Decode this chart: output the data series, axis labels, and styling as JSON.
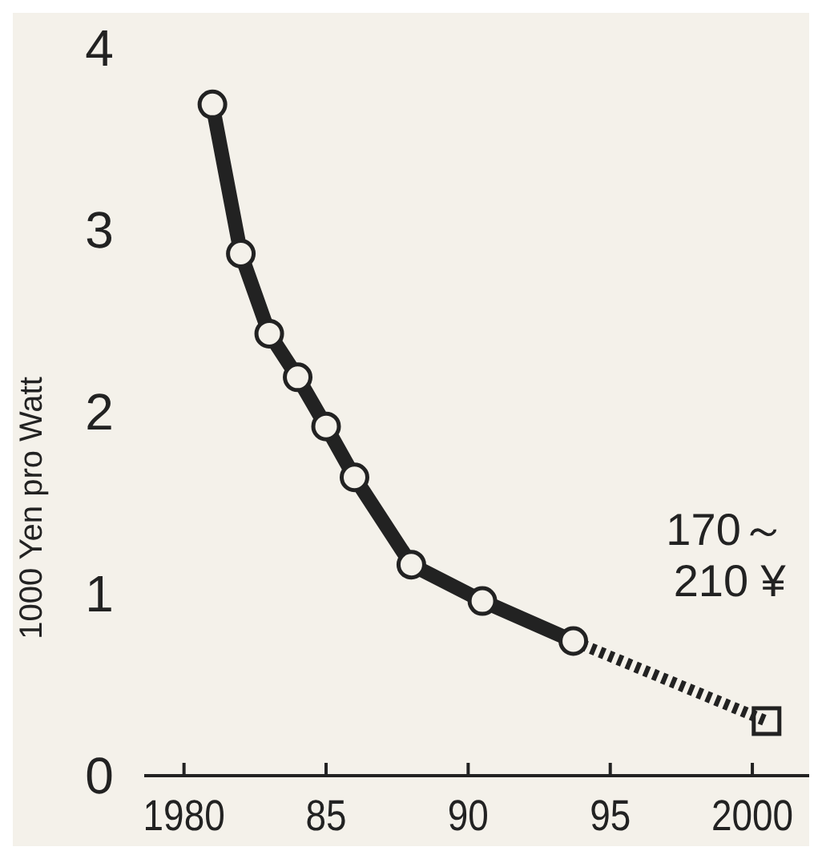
{
  "chart_data": {
    "type": "line",
    "ylabel": "1000 Yen pro Watt",
    "x": [
      1981,
      1982,
      1983,
      1984,
      1985,
      1986,
      1988,
      1990.5,
      1993.7,
      2000.5
    ],
    "series": [
      {
        "color": "#222222",
        "marker": "circle",
        "line_style": "solid",
        "values": [
          3.69,
          2.87,
          2.43,
          2.19,
          1.92,
          1.64,
          1.16,
          0.96,
          0.74,
          null
        ]
      },
      {
        "color": "#222222",
        "marker": "none",
        "line_style": "dotted",
        "values": [
          null,
          null,
          null,
          null,
          null,
          null,
          null,
          null,
          0.74,
          0.3
        ]
      },
      {
        "type": "scatter",
        "color": "#222222",
        "marker": "square",
        "values": [
          null,
          null,
          null,
          null,
          null,
          null,
          null,
          null,
          null,
          0.3
        ]
      }
    ],
    "annotations": [
      {
        "text": "170～\n210 ¥",
        "x": 2000.5,
        "y": 0.3
      }
    ],
    "xlim": [
      1978.6,
      2002
    ],
    "xticks": [
      {
        "value": 1980,
        "label": "1980"
      },
      {
        "value": 1985,
        "label": "85"
      },
      {
        "value": 1990,
        "label": "90"
      },
      {
        "value": 1995,
        "label": "95"
      },
      {
        "value": 2000,
        "label": "2000"
      }
    ],
    "ylim": [
      0,
      4
    ],
    "yticks": [
      0,
      1,
      2,
      3,
      4
    ],
    "grid": false
  }
}
